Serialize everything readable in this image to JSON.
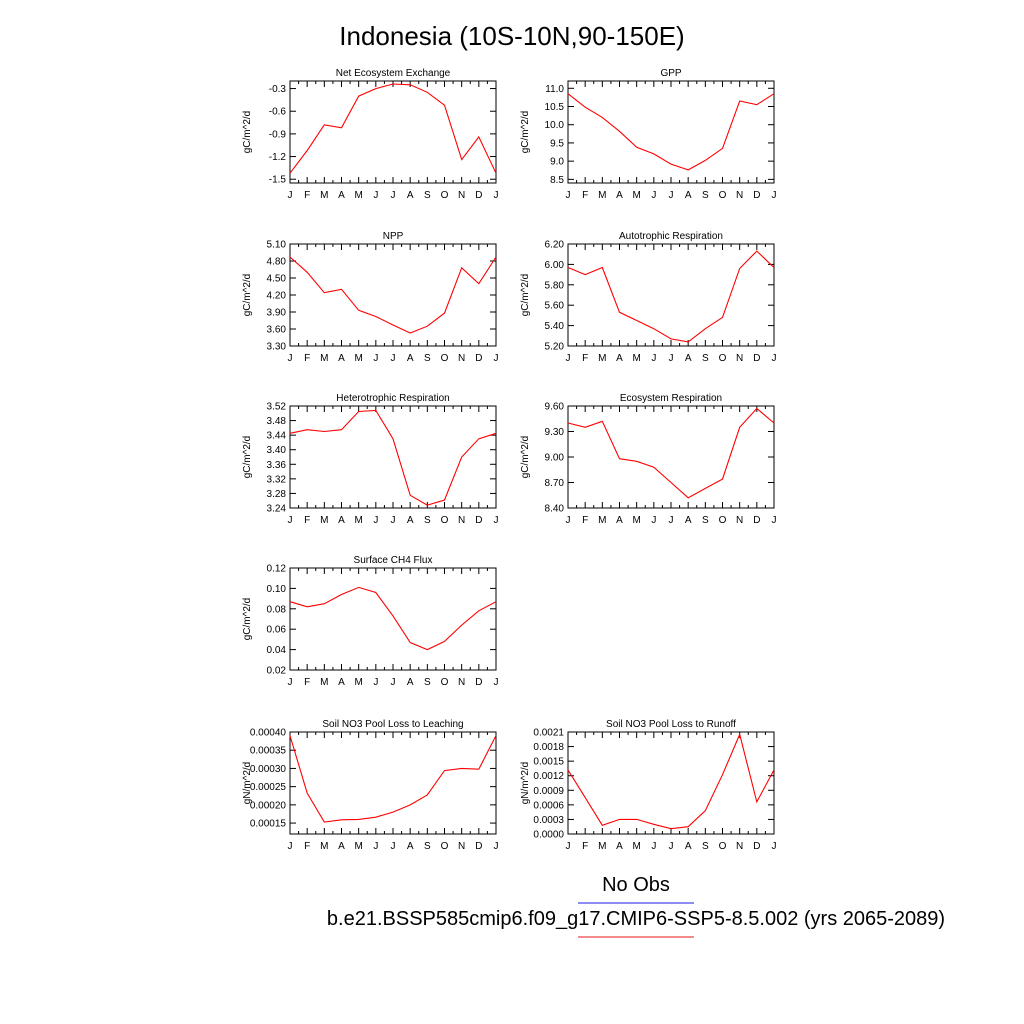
{
  "title": "Indonesia (10S-10N,90-150E)",
  "legend": {
    "obs_label": "No Obs",
    "obs_color": "#6666ee",
    "model_label": "b.e21.BSSP585cmip6.f09_g17.CMIP6-SSP5-8.5.002 (yrs 2065-2089)",
    "model_color": "#ee6666"
  },
  "line_color": "#ff0000",
  "chart_data": [
    {
      "type": "line",
      "title": "Net Ecosystem Exchange",
      "ylabel": "gC/m^2/d",
      "categories": [
        "J",
        "F",
        "M",
        "A",
        "M",
        "J",
        "J",
        "A",
        "S",
        "O",
        "N",
        "D",
        "J"
      ],
      "yticks": [
        "-0.3",
        "-0.6",
        "-0.9",
        "-1.2",
        "-1.5"
      ],
      "ylim": [
        -1.55,
        -0.2
      ],
      "values": [
        -1.42,
        -1.12,
        -0.78,
        -0.82,
        -0.4,
        -0.3,
        -0.24,
        -0.25,
        -0.35,
        -0.52,
        -1.24,
        -0.94,
        -1.42
      ]
    },
    {
      "type": "line",
      "title": "GPP",
      "ylabel": "gC/m^2/d",
      "categories": [
        "J",
        "F",
        "M",
        "A",
        "M",
        "J",
        "J",
        "A",
        "S",
        "O",
        "N",
        "D",
        "J"
      ],
      "yticks": [
        "11.0",
        "10.5",
        "10.0",
        "9.5",
        "9.0",
        "8.5"
      ],
      "ylim": [
        8.4,
        11.2
      ],
      "values": [
        10.85,
        10.48,
        10.2,
        9.82,
        9.38,
        9.2,
        8.92,
        8.76,
        9.02,
        9.35,
        10.65,
        10.55,
        10.85
      ]
    },
    {
      "type": "line",
      "title": "NPP",
      "ylabel": "gC/m^2/d",
      "categories": [
        "J",
        "F",
        "M",
        "A",
        "M",
        "J",
        "J",
        "A",
        "S",
        "O",
        "N",
        "D",
        "J"
      ],
      "yticks": [
        "5.10",
        "4.80",
        "4.50",
        "4.20",
        "3.90",
        "3.60",
        "3.30"
      ],
      "ylim": [
        3.3,
        5.1
      ],
      "values": [
        4.87,
        4.6,
        4.24,
        4.3,
        3.93,
        3.82,
        3.67,
        3.53,
        3.65,
        3.88,
        4.68,
        4.4,
        4.87
      ]
    },
    {
      "type": "line",
      "title": "Autotrophic Respiration",
      "ylabel": "gC/m^2/d",
      "categories": [
        "J",
        "F",
        "M",
        "A",
        "M",
        "J",
        "J",
        "A",
        "S",
        "O",
        "N",
        "D",
        "J"
      ],
      "yticks": [
        "6.20",
        "6.00",
        "5.80",
        "5.60",
        "5.40",
        "5.20"
      ],
      "ylim": [
        5.2,
        6.2
      ],
      "values": [
        5.97,
        5.9,
        5.97,
        5.53,
        5.45,
        5.37,
        5.27,
        5.24,
        5.37,
        5.48,
        5.96,
        6.13,
        5.97
      ]
    },
    {
      "type": "line",
      "title": "Heterotrophic Respiration",
      "ylabel": "gC/m^2/d",
      "categories": [
        "J",
        "F",
        "M",
        "A",
        "M",
        "J",
        "J",
        "A",
        "S",
        "O",
        "N",
        "D",
        "J"
      ],
      "yticks": [
        "3.52",
        "3.48",
        "3.44",
        "3.40",
        "3.36",
        "3.32",
        "3.28",
        "3.24"
      ],
      "ylim": [
        3.24,
        3.52
      ],
      "values": [
        3.445,
        3.455,
        3.45,
        3.455,
        3.505,
        3.508,
        3.43,
        3.275,
        3.248,
        3.262,
        3.38,
        3.43,
        3.445
      ]
    },
    {
      "type": "line",
      "title": "Ecosystem Respiration",
      "ylabel": "gC/m^2/d",
      "categories": [
        "J",
        "F",
        "M",
        "A",
        "M",
        "J",
        "J",
        "A",
        "S",
        "O",
        "N",
        "D",
        "J"
      ],
      "yticks": [
        "9.60",
        "9.30",
        "9.00",
        "8.70",
        "8.40"
      ],
      "ylim": [
        8.4,
        9.6
      ],
      "values": [
        9.4,
        9.35,
        9.42,
        8.98,
        8.95,
        8.88,
        8.7,
        8.52,
        8.63,
        8.74,
        9.35,
        9.57,
        9.4
      ]
    },
    {
      "type": "line",
      "title": "Surface CH4 Flux",
      "ylabel": "gC/m^2/d",
      "categories": [
        "J",
        "F",
        "M",
        "A",
        "M",
        "J",
        "J",
        "A",
        "S",
        "O",
        "N",
        "D",
        "J"
      ],
      "yticks": [
        "0.12",
        "0.10",
        "0.08",
        "0.06",
        "0.04",
        "0.02"
      ],
      "ylim": [
        0.02,
        0.12
      ],
      "values": [
        0.087,
        0.082,
        0.085,
        0.094,
        0.101,
        0.096,
        0.073,
        0.047,
        0.04,
        0.048,
        0.064,
        0.078,
        0.087
      ]
    },
    {
      "type": "line",
      "title": "Soil NO3 Pool Loss to Leaching",
      "ylabel": "gN/m^2/d",
      "categories": [
        "J",
        "F",
        "M",
        "A",
        "M",
        "J",
        "J",
        "A",
        "S",
        "O",
        "N",
        "D",
        "J"
      ],
      "yticks": [
        "0.00040",
        "0.00035",
        "0.00030",
        "0.00025",
        "0.00020",
        "0.00015"
      ],
      "ylim": [
        0.00012,
        0.0004
      ],
      "values": [
        0.00039,
        0.000232,
        0.000153,
        0.000159,
        0.00016,
        0.000166,
        0.00018,
        0.0002,
        0.000227,
        0.000294,
        0.0003,
        0.000298,
        0.00039
      ]
    },
    {
      "type": "line",
      "title": "Soil NO3 Pool Loss to Runoff",
      "ylabel": "gN/m^2/d",
      "categories": [
        "J",
        "F",
        "M",
        "A",
        "M",
        "J",
        "J",
        "A",
        "S",
        "O",
        "N",
        "D",
        "J"
      ],
      "yticks": [
        "0.0021",
        "0.0018",
        "0.0015",
        "0.0012",
        "0.0009",
        "0.0006",
        "0.0003",
        "0.0000"
      ],
      "ylim": [
        0.0,
        0.0021
      ],
      "values": [
        0.00132,
        0.00075,
        0.00018,
        0.0003,
        0.0003,
        0.0002,
        0.00011,
        0.00015,
        0.00048,
        0.00122,
        0.00205,
        0.00066,
        0.00132
      ]
    }
  ]
}
